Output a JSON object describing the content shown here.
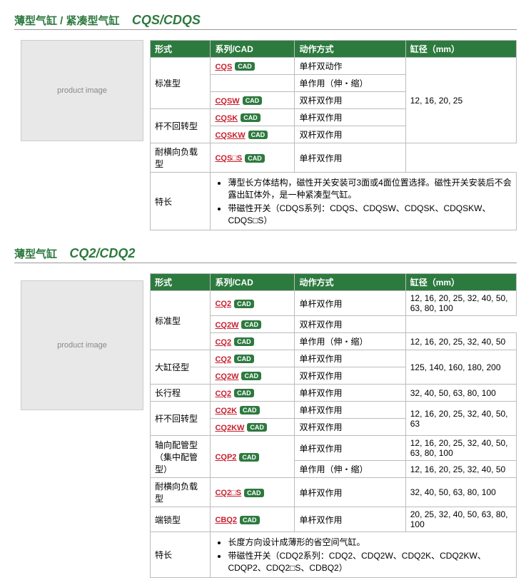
{
  "cad_label": "CAD",
  "section1": {
    "title_jp": "薄型气缸 / 紧凑型气缸",
    "model": "CQS/CDQS",
    "img_ph": "product image",
    "headers": [
      "形式",
      "系列/CAD",
      "动作方式",
      "缸径（mm）"
    ],
    "rows": [
      {
        "form": "标准型",
        "form_span": 3,
        "series": "CQS",
        "action": "单杆双动作",
        "bore": "12, 16, 20, 25",
        "bore_span": 5
      },
      {
        "series": "",
        "action": "单作用（伸・缩）"
      },
      {
        "series": "CQSW",
        "action": "双杆双作用"
      },
      {
        "form": "杆不回转型",
        "form_span": 2,
        "series": "CQSK",
        "action": "单杆双作用"
      },
      {
        "series": "CQSKW",
        "action": "双杆双作用"
      },
      {
        "form": "耐横向负载型",
        "series": "CQS□S",
        "action": "单杆双作用"
      }
    ],
    "feature_label": "特长",
    "features": [
      "薄型长方体结构，磁性开关安装可3面或4面位置选择。磁性开关安装后不会露出缸体外，是一种紧凑型气缸。",
      "带磁性开关（CDQS系列：CDQS、CDQSW、CDQSK、CDQSKW、CDQS□S）"
    ]
  },
  "section2": {
    "title_jp": "薄型气缸",
    "model": "CQ2/CDQ2",
    "img_ph": "product image",
    "headers": [
      "形式",
      "系列/CAD",
      "动作方式",
      "缸径（mm）"
    ],
    "rows": [
      {
        "form": "标准型",
        "form_span": 3,
        "series": "CQ2",
        "action": "单杆双作用",
        "bore": "12, 16, 20, 25, 32, 40, 50, 63, 80, 100"
      },
      {
        "series": "CQ2W",
        "action": "双杆双作用"
      },
      {
        "series": "CQ2",
        "action": "单作用（伸・缩）",
        "bore": "12, 16, 20, 25, 32, 40, 50"
      },
      {
        "form": "大缸径型",
        "form_span": 2,
        "series": "CQ2",
        "action": "单杆双作用",
        "bore": "125, 140, 160, 180, 200",
        "bore_span": 2
      },
      {
        "series": "CQ2W",
        "action": "双杆双作用"
      },
      {
        "form": "长行程",
        "series": "CQ2",
        "action": "单杆双作用",
        "bore": "32, 40, 50, 63, 80, 100"
      },
      {
        "form": "杆不回转型",
        "form_span": 2,
        "series": "CQ2K",
        "action": "单杆双作用",
        "bore": "12, 16, 20, 25, 32, 40, 50, 63",
        "bore_span": 2
      },
      {
        "series": "CQ2KW",
        "action": "双杆双作用"
      },
      {
        "form": "轴向配管型 （集中配管型）",
        "form_span": 2,
        "series": "CQP2",
        "series_span": 2,
        "action": "单杆双作用",
        "bore": "12, 16, 20, 25, 32, 40, 50, 63, 80, 100"
      },
      {
        "action": "单作用（伸・缩）",
        "bore": "12, 16, 20, 25, 32, 40, 50"
      },
      {
        "form": "耐横向负载型",
        "series": "CQ2□S",
        "action": "单杆双作用",
        "bore": "32, 40, 50, 63, 80, 100"
      },
      {
        "form": "端锁型",
        "series": "CBQ2",
        "action": "单杆双作用",
        "bore": "20, 25, 32, 40, 50, 63, 80, 100"
      }
    ],
    "feature_label": "特长",
    "features": [
      "长度方向设计成薄形的省空间气缸。",
      "带磁性开关（CDQ2系列：CDQ2、CDQ2W、CDQ2K、CDQ2KW、CDQP2、CDQ2□S、CDBQ2）"
    ]
  }
}
